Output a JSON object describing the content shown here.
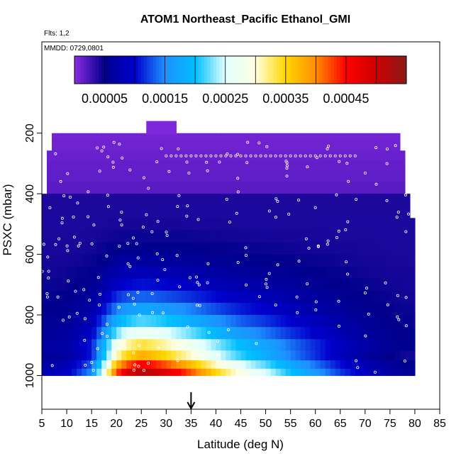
{
  "chart_data": {
    "type": "heatmap",
    "title": "ATOM1 Northeast_Pacific Ethanol_GMI",
    "note_flights": "Flts: 1,2",
    "note_dates": "MMDD: 0729,0801",
    "xlabel": "Latitude (deg N)",
    "ylabel": "PSXC (mbar)",
    "xlim": [
      5,
      85
    ],
    "ylim": [
      1000,
      100
    ],
    "x_ticks": [
      5,
      10,
      15,
      20,
      25,
      30,
      35,
      40,
      45,
      50,
      55,
      60,
      65,
      70,
      75,
      80,
      85
    ],
    "y_ticks": [
      200,
      400,
      600,
      800,
      1000
    ],
    "colorbar": {
      "min": 0,
      "max": 0.00055,
      "tick_values": [
        5e-05,
        0.00015,
        0.00025,
        0.00035,
        0.00045
      ],
      "tick_labels": [
        "0.00005",
        "0.00015",
        "0.00025",
        "0.00035",
        "0.00045"
      ],
      "colors": [
        "#8a2be2",
        "#00008b",
        "#0000cd",
        "#1e90ff",
        "#00bfff",
        "#e0ffff",
        "#ffffe0",
        "#ffd700",
        "#ff8c00",
        "#ff0000",
        "#cd0000",
        "#8b1a1a"
      ]
    },
    "pressure_levels": [
      210,
      240,
      275,
      305,
      340,
      380,
      420,
      460,
      500,
      540,
      580,
      620,
      660,
      700,
      740,
      780,
      820,
      860,
      900,
      935,
      965,
      990
    ],
    "lat_coverage": [
      {
        "lat_min": 7,
        "lat_max": 77,
        "p_min": 200
      },
      {
        "lat_min": 6,
        "lat_max": 78,
        "p_min": 260
      },
      {
        "lat_min": 6,
        "lat_max": 78,
        "p_min": 310
      },
      {
        "lat_min": 5,
        "lat_max": 79,
        "p_min": 420
      },
      {
        "lat_min": 5,
        "lat_max": 80,
        "p_min": 490
      }
    ],
    "surface_profile": {
      "lat": [
        5,
        10,
        15,
        18,
        20,
        22,
        25,
        28,
        30,
        35,
        40,
        45,
        50,
        55,
        60,
        65,
        70,
        75,
        78
      ],
      "value": [
        8e-05,
        9e-05,
        0.00015,
        0.0003,
        0.00042,
        0.00048,
        0.00052,
        0.0005,
        0.00048,
        0.00042,
        0.00035,
        0.00029,
        0.00025,
        0.0002,
        0.00016,
        0.00012,
        9e-05,
        7e-05,
        6e-05
      ]
    },
    "aircraft_points_lat": [
      5,
      6,
      7,
      8,
      9,
      10,
      11,
      12,
      13,
      14,
      15,
      16,
      17,
      18,
      19,
      20,
      21,
      22,
      23,
      24,
      25,
      26,
      27,
      28,
      29,
      30,
      32,
      34,
      36,
      38,
      40,
      42,
      44,
      46,
      48,
      50,
      52,
      54,
      56,
      58,
      60,
      62,
      64,
      66,
      68,
      70,
      72,
      74,
      76,
      78
    ],
    "arrow_lat": 35
  }
}
